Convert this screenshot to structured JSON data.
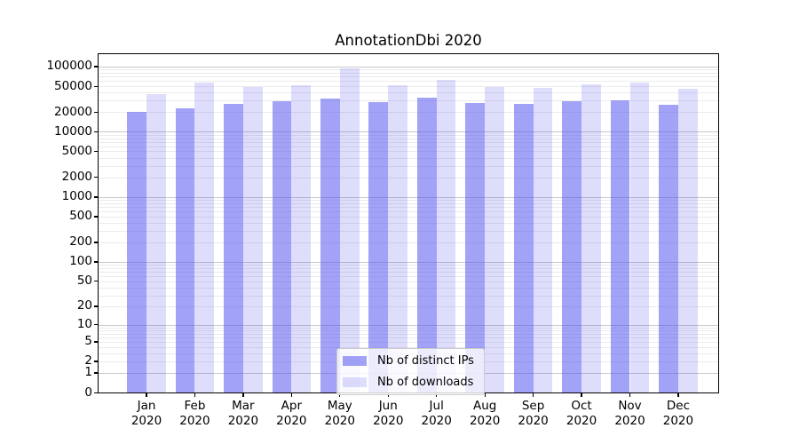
{
  "title": "AnnotationDbi 2020",
  "chart_data": {
    "type": "bar",
    "title": "AnnotationDbi 2020",
    "categories": [
      "Jan 2020",
      "Feb 2020",
      "Mar 2020",
      "Apr 2020",
      "May 2020",
      "Jun 2020",
      "Jul 2020",
      "Aug 2020",
      "Sep 2020",
      "Oct 2020",
      "Nov 2020",
      "Dec 2020"
    ],
    "series": [
      {
        "name": "Nb of distinct IPs",
        "color": "rgba(80,80,238,0.53)",
        "values": [
          20200,
          22700,
          27200,
          29700,
          32400,
          28800,
          33400,
          27900,
          26800,
          29600,
          30500,
          25800
        ]
      },
      {
        "name": "Nb of downloads",
        "color": "rgba(80,80,238,0.19)",
        "values": [
          37900,
          57000,
          48700,
          52000,
          94000,
          52000,
          62500,
          48700,
          47200,
          53400,
          57000,
          45700
        ]
      }
    ],
    "xlabel": "",
    "ylabel": "",
    "yscale": "log1p",
    "yticks": [
      0,
      1,
      2,
      5,
      10,
      20,
      50,
      100,
      200,
      500,
      1000,
      2000,
      5000,
      10000,
      20000,
      50000,
      100000
    ],
    "ylim": [
      0,
      165000
    ],
    "grid": true,
    "grid_major_color": "#c9c9c9",
    "grid_minor_color": "#ebebeb",
    "legend_position": "lower center"
  }
}
